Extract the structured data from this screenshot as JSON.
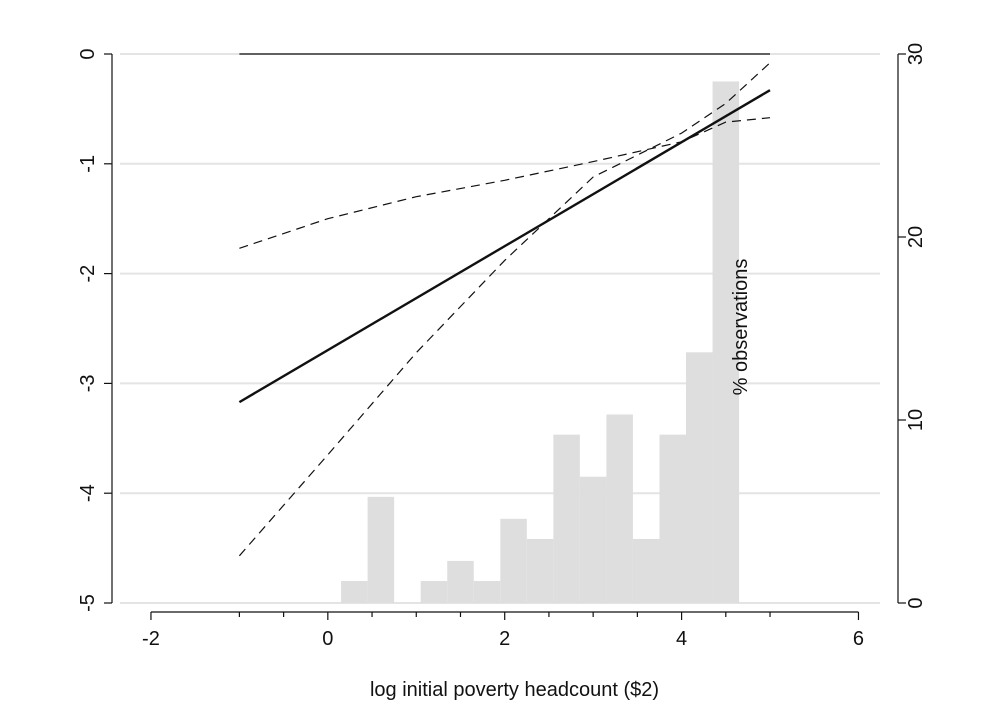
{
  "chart_data": {
    "type": "line+histogram",
    "xlabel": "log initial poverty headcount ($2)",
    "y2label": "% observations",
    "xlim": [
      -2.35,
      6.3
    ],
    "ylim": [
      -5.07,
      0.25
    ],
    "y2lim": [
      0,
      30
    ],
    "xticks": [
      -2,
      0,
      2,
      4,
      6
    ],
    "xminorticks": [
      -1,
      -0.5,
      0.5,
      1,
      1.5,
      2.5,
      3,
      3.5,
      4.5,
      5
    ],
    "yticks": [
      0,
      -1,
      -2,
      -3,
      -4,
      -5
    ],
    "y2ticks": [
      0,
      10,
      20,
      30
    ],
    "grid": "horizontal",
    "series": [
      {
        "kind": "line",
        "style": "solid-thin",
        "x": [
          -1,
          5
        ],
        "y": [
          0,
          0
        ]
      },
      {
        "kind": "line",
        "style": "solid-bold",
        "x": [
          -1,
          5
        ],
        "y": [
          -3.17,
          -0.33
        ]
      },
      {
        "kind": "line",
        "style": "dashed",
        "x": [
          -1,
          0,
          1,
          2,
          3,
          4,
          4.5,
          5
        ],
        "y": [
          -1.77,
          -1.5,
          -1.3,
          -1.15,
          -0.98,
          -0.8,
          -0.62,
          -0.58
        ]
      },
      {
        "kind": "line",
        "style": "dashed",
        "x": [
          -1,
          0,
          1,
          2,
          3,
          4,
          4.5,
          5
        ],
        "y": [
          -4.57,
          -3.65,
          -2.72,
          -1.88,
          -1.12,
          -0.72,
          -0.45,
          -0.08
        ]
      }
    ],
    "histogram": {
      "bin_edges": [
        0.15,
        0.45,
        0.75,
        1.05,
        1.35,
        1.65,
        1.95,
        2.25,
        2.55,
        2.85,
        3.15,
        3.45,
        3.75,
        4.05,
        4.35,
        4.65
      ],
      "percent": [
        1.2,
        5.8,
        0,
        1.2,
        2.3,
        1.2,
        4.6,
        3.5,
        9.2,
        6.9,
        10.3,
        3.5,
        9.2,
        13.7,
        28.5
      ]
    },
    "colors": {
      "bars": "#dedede",
      "grid": "#e4e4e4",
      "line": "#111111"
    }
  }
}
